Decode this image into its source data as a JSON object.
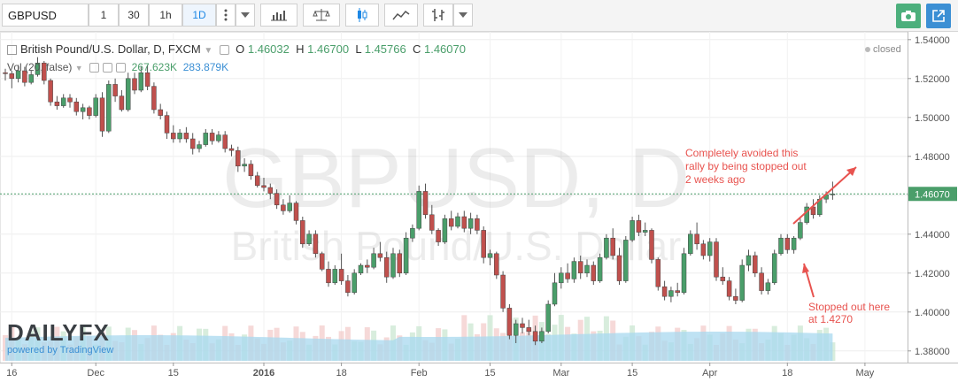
{
  "toolbar": {
    "symbol": "GBPUSD",
    "intervals": [
      "1",
      "30",
      "1h",
      "1D"
    ],
    "active_interval": "1D",
    "icons": [
      "more-icon",
      "dropdown-icon",
      "indicators-icon",
      "compare-icon",
      "candles-icon",
      "area-icon",
      "bars-icon",
      "dropdown-icon",
      "camera-icon",
      "popout-icon"
    ]
  },
  "legend": {
    "title": "British Pound/U.S. Dollar, D, FXCM",
    "o_label": "O",
    "o_value": "1.46032",
    "h_label": "H",
    "h_value": "1.46700",
    "l_label": "L",
    "l_value": "1.45766",
    "c_label": "C",
    "c_value": "1.46070",
    "vol_label": "Vol (20, false)",
    "vol_value1": "267.623K",
    "vol_value2": "283.879K",
    "status": "closed"
  },
  "watermark": {
    "big": "GBPUSD, D",
    "small": "British Pound/U.S. Dollar"
  },
  "annotations": {
    "top_text": [
      "Completely avoided this",
      "rally by being stopped out",
      "2 weeks ago"
    ],
    "bottom_text": [
      "Stopped out here",
      "at 1.4270"
    ]
  },
  "branding": {
    "logo": "DAILYFX",
    "powered": "powered by TradingView"
  },
  "colors": {
    "up": "#4a9e6a",
    "down": "#c0504d",
    "annotation": "#e8534f",
    "last_price_bg": "#4a9e6a",
    "volume_area": "#a8d8ef"
  },
  "chart_data": {
    "type": "candlestick",
    "y_ticks": [
      "1.54000",
      "1.52000",
      "1.50000",
      "1.48000",
      "1.46000",
      "1.44000",
      "1.42000",
      "1.40000",
      "1.38000"
    ],
    "y_range": [
      1.374,
      1.544
    ],
    "last_price": 1.4607,
    "last_price_label": "1.46070",
    "x_ticks": [
      "16",
      "Dec",
      "15",
      "2016",
      "18",
      "Feb",
      "15",
      "Mar",
      "15",
      "Apr",
      "18",
      "May"
    ],
    "candles": [
      [
        1.523,
        1.525,
        1.519,
        1.5225
      ],
      [
        1.5225,
        1.524,
        1.515,
        1.52
      ],
      [
        1.52,
        1.527,
        1.518,
        1.524
      ],
      [
        1.524,
        1.526,
        1.516,
        1.518
      ],
      [
        1.518,
        1.524,
        1.517,
        1.522
      ],
      [
        1.522,
        1.531,
        1.521,
        1.528
      ],
      [
        1.528,
        1.529,
        1.517,
        1.519
      ],
      [
        1.519,
        1.52,
        1.506,
        1.508
      ],
      [
        1.508,
        1.511,
        1.504,
        1.506
      ],
      [
        1.506,
        1.512,
        1.505,
        1.51
      ],
      [
        1.51,
        1.512,
        1.505,
        1.508
      ],
      [
        1.508,
        1.51,
        1.501,
        1.503
      ],
      [
        1.503,
        1.507,
        1.499,
        1.505
      ],
      [
        1.505,
        1.506,
        1.499,
        1.501
      ],
      [
        1.501,
        1.512,
        1.5,
        1.51
      ],
      [
        1.51,
        1.513,
        1.49,
        1.493
      ],
      [
        1.493,
        1.519,
        1.492,
        1.517
      ],
      [
        1.517,
        1.52,
        1.508,
        1.511
      ],
      [
        1.511,
        1.514,
        1.503,
        1.504
      ],
      [
        1.504,
        1.523,
        1.503,
        1.52
      ],
      [
        1.52,
        1.523,
        1.512,
        1.514
      ],
      [
        1.514,
        1.526,
        1.513,
        1.523
      ],
      [
        1.523,
        1.527,
        1.514,
        1.516
      ],
      [
        1.516,
        1.518,
        1.502,
        1.504
      ],
      [
        1.504,
        1.507,
        1.499,
        1.501
      ],
      [
        1.501,
        1.503,
        1.489,
        1.492
      ],
      [
        1.492,
        1.496,
        1.487,
        1.489
      ],
      [
        1.489,
        1.494,
        1.487,
        1.492
      ],
      [
        1.492,
        1.495,
        1.487,
        1.489
      ],
      [
        1.489,
        1.492,
        1.481,
        1.484
      ],
      [
        1.484,
        1.488,
        1.482,
        1.486
      ],
      [
        1.486,
        1.494,
        1.485,
        1.492
      ],
      [
        1.492,
        1.494,
        1.486,
        1.488
      ],
      [
        1.488,
        1.493,
        1.487,
        1.491
      ],
      [
        1.491,
        1.493,
        1.482,
        1.484
      ],
      [
        1.484,
        1.486,
        1.48,
        1.483
      ],
      [
        1.483,
        1.485,
        1.472,
        1.475
      ],
      [
        1.475,
        1.479,
        1.472,
        1.476
      ],
      [
        1.476,
        1.478,
        1.468,
        1.47
      ],
      [
        1.47,
        1.472,
        1.464,
        1.465
      ],
      [
        1.465,
        1.469,
        1.462,
        1.464
      ],
      [
        1.464,
        1.466,
        1.458,
        1.461
      ],
      [
        1.461,
        1.463,
        1.453,
        1.455
      ],
      [
        1.455,
        1.458,
        1.45,
        1.452
      ],
      [
        1.452,
        1.46,
        1.451,
        1.456
      ],
      [
        1.456,
        1.457,
        1.445,
        1.447
      ],
      [
        1.447,
        1.449,
        1.433,
        1.435
      ],
      [
        1.435,
        1.442,
        1.434,
        1.44
      ],
      [
        1.44,
        1.442,
        1.428,
        1.43
      ],
      [
        1.43,
        1.431,
        1.421,
        1.422
      ],
      [
        1.422,
        1.426,
        1.413,
        1.415
      ],
      [
        1.415,
        1.424,
        1.414,
        1.422
      ],
      [
        1.422,
        1.43,
        1.414,
        1.416
      ],
      [
        1.416,
        1.419,
        1.408,
        1.41
      ],
      [
        1.41,
        1.422,
        1.409,
        1.42
      ],
      [
        1.42,
        1.425,
        1.419,
        1.424
      ],
      [
        1.424,
        1.427,
        1.42,
        1.423
      ],
      [
        1.423,
        1.433,
        1.422,
        1.43
      ],
      [
        1.43,
        1.436,
        1.426,
        1.428
      ],
      [
        1.428,
        1.431,
        1.415,
        1.418
      ],
      [
        1.418,
        1.433,
        1.417,
        1.43
      ],
      [
        1.43,
        1.432,
        1.418,
        1.42
      ],
      [
        1.42,
        1.441,
        1.419,
        1.438
      ],
      [
        1.438,
        1.445,
        1.436,
        1.443
      ],
      [
        1.443,
        1.465,
        1.442,
        1.462
      ],
      [
        1.462,
        1.466,
        1.448,
        1.45
      ],
      [
        1.45,
        1.455,
        1.44,
        1.442
      ],
      [
        1.442,
        1.443,
        1.434,
        1.436
      ],
      [
        1.436,
        1.45,
        1.435,
        1.448
      ],
      [
        1.448,
        1.452,
        1.442,
        1.444
      ],
      [
        1.444,
        1.451,
        1.443,
        1.449
      ],
      [
        1.449,
        1.452,
        1.441,
        1.443
      ],
      [
        1.443,
        1.451,
        1.44,
        1.448
      ],
      [
        1.448,
        1.45,
        1.44,
        1.442
      ],
      [
        1.442,
        1.444,
        1.425,
        1.428
      ],
      [
        1.428,
        1.432,
        1.424,
        1.43
      ],
      [
        1.43,
        1.431,
        1.417,
        1.419
      ],
      [
        1.419,
        1.421,
        1.4,
        1.402
      ],
      [
        1.402,
        1.404,
        1.386,
        1.388
      ],
      [
        1.388,
        1.396,
        1.384,
        1.394
      ],
      [
        1.394,
        1.397,
        1.389,
        1.392
      ],
      [
        1.392,
        1.396,
        1.388,
        1.39
      ],
      [
        1.39,
        1.393,
        1.383,
        1.385
      ],
      [
        1.385,
        1.392,
        1.384,
        1.39
      ],
      [
        1.39,
        1.406,
        1.389,
        1.404
      ],
      [
        1.404,
        1.42,
        1.403,
        1.415
      ],
      [
        1.415,
        1.423,
        1.412,
        1.42
      ],
      [
        1.42,
        1.425,
        1.415,
        1.417
      ],
      [
        1.417,
        1.428,
        1.415,
        1.426
      ],
      [
        1.426,
        1.429,
        1.417,
        1.42
      ],
      [
        1.42,
        1.427,
        1.418,
        1.424
      ],
      [
        1.424,
        1.426,
        1.414,
        1.416
      ],
      [
        1.416,
        1.43,
        1.415,
        1.428
      ],
      [
        1.428,
        1.44,
        1.427,
        1.438
      ],
      [
        1.438,
        1.443,
        1.427,
        1.429
      ],
      [
        1.429,
        1.433,
        1.414,
        1.416
      ],
      [
        1.416,
        1.439,
        1.415,
        1.437
      ],
      [
        1.437,
        1.449,
        1.436,
        1.447
      ],
      [
        1.447,
        1.45,
        1.439,
        1.441
      ],
      [
        1.441,
        1.446,
        1.439,
        1.442
      ],
      [
        1.442,
        1.443,
        1.425,
        1.427
      ],
      [
        1.427,
        1.428,
        1.411,
        1.413
      ],
      [
        1.413,
        1.416,
        1.406,
        1.408
      ],
      [
        1.408,
        1.413,
        1.405,
        1.411
      ],
      [
        1.411,
        1.415,
        1.408,
        1.41
      ],
      [
        1.41,
        1.433,
        1.409,
        1.43
      ],
      [
        1.43,
        1.442,
        1.429,
        1.44
      ],
      [
        1.44,
        1.446,
        1.432,
        1.435
      ],
      [
        1.435,
        1.437,
        1.427,
        1.429
      ],
      [
        1.429,
        1.438,
        1.426,
        1.436
      ],
      [
        1.436,
        1.438,
        1.416,
        1.418
      ],
      [
        1.418,
        1.423,
        1.414,
        1.416
      ],
      [
        1.416,
        1.418,
        1.406,
        1.408
      ],
      [
        1.408,
        1.412,
        1.404,
        1.406
      ],
      [
        1.406,
        1.427,
        1.405,
        1.424
      ],
      [
        1.424,
        1.432,
        1.421,
        1.429
      ],
      [
        1.429,
        1.431,
        1.418,
        1.42
      ],
      [
        1.42,
        1.423,
        1.409,
        1.411
      ],
      [
        1.411,
        1.417,
        1.409,
        1.415
      ],
      [
        1.415,
        1.432,
        1.414,
        1.43
      ],
      [
        1.43,
        1.44,
        1.429,
        1.438
      ],
      [
        1.438,
        1.44,
        1.43,
        1.432
      ],
      [
        1.432,
        1.439,
        1.43,
        1.438
      ],
      [
        1.438,
        1.448,
        1.437,
        1.446
      ],
      [
        1.446,
        1.456,
        1.445,
        1.454
      ],
      [
        1.454,
        1.458,
        1.448,
        1.45
      ],
      [
        1.45,
        1.46,
        1.449,
        1.458
      ],
      [
        1.458,
        1.462,
        1.456,
        1.4603
      ],
      [
        1.4603,
        1.467,
        1.4577,
        1.4607
      ]
    ],
    "volume_ticks_note": "volume histogram with moving average area"
  }
}
